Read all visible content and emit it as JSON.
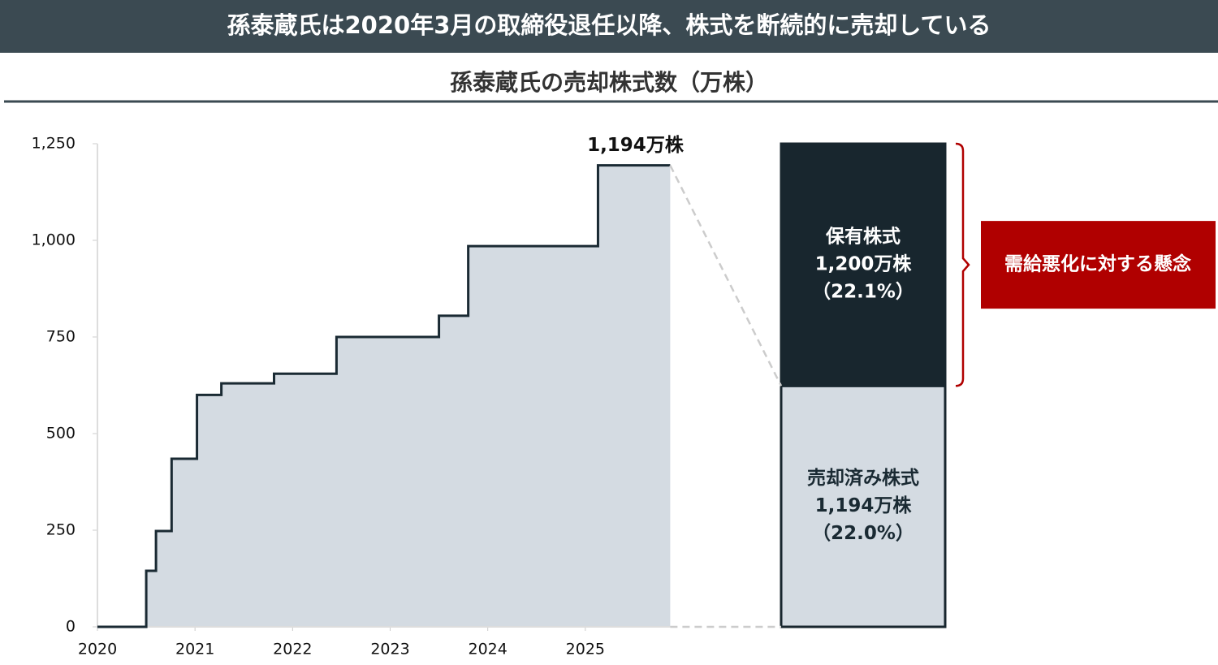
{
  "header": {
    "title": "孫泰蔵氏は2020年3月の取締役退任以降、株式を断続的に売却している"
  },
  "chart_data": [
    {
      "type": "area",
      "step": "post",
      "title": "孫泰蔵氏の売却株式数（万株）",
      "x": [
        2020,
        2020.5,
        2020.6,
        2020.76,
        2021.02,
        2021.27,
        2021.81,
        2022.45,
        2023.5,
        2023.8,
        2025.13,
        2025.87
      ],
      "values": [
        0,
        145,
        248,
        435,
        600,
        630,
        655,
        750,
        805,
        985,
        1194,
        1194
      ],
      "color": "#d4dbe2",
      "line_color": "#1a2a33",
      "annotation": "1,194万株",
      "xlim": [
        2020,
        2026
      ],
      "xticks": [
        2020,
        2021,
        2022,
        2023,
        2024,
        2025
      ],
      "ylim": [
        0,
        1250
      ],
      "yticks": [
        0,
        250,
        500,
        750,
        {
          "value": 1000,
          "label": "1,000"
        },
        {
          "value": 1250,
          "label": "1,250"
        }
      ]
    },
    {
      "type": "stacked-bar",
      "series": [
        {
          "name": "売却済み株式",
          "color": "#d4dbe2",
          "text_color": "#1a2a33",
          "values": [
            1194
          ],
          "value_labels": [
            "1,194万株"
          ],
          "percent_labels": [
            "（22.0%）"
          ]
        },
        {
          "name": "保有株式",
          "color": "#18262e",
          "text_color": "#ffffff",
          "values": [
            1200
          ],
          "value_labels": [
            "1,200万株"
          ],
          "percent_labels": [
            "（22.1%）"
          ]
        }
      ],
      "bracket_label": "需給悪化に対する懸念",
      "bracket_color": "#b00000"
    }
  ]
}
